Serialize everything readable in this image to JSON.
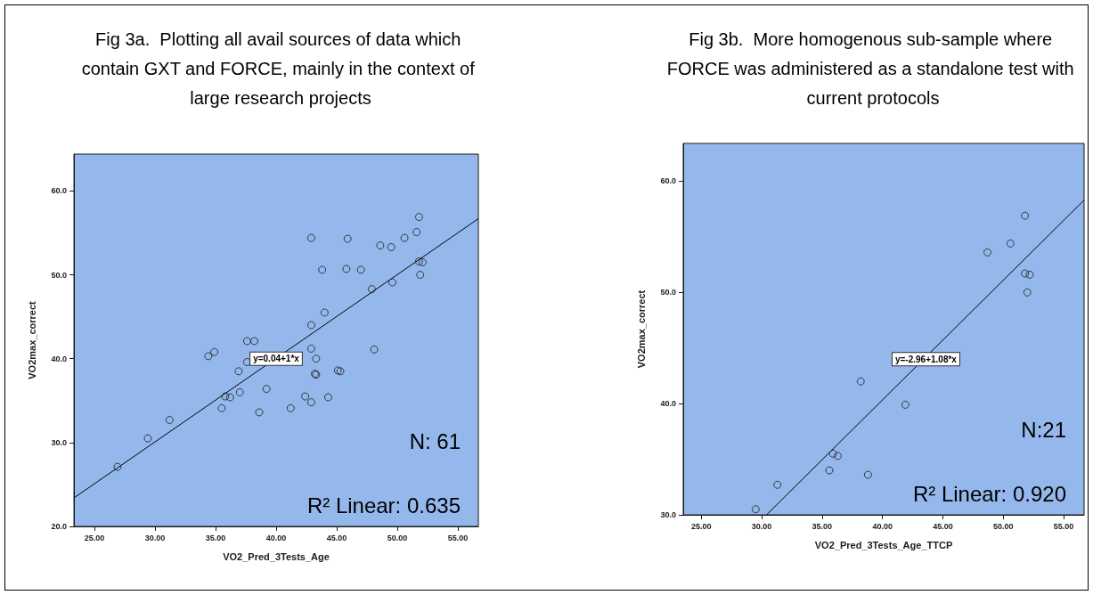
{
  "chart_data": [
    {
      "type": "scatter",
      "title": "Fig 3a.  Plotting all avail sources of data which contain GXT and FORCE, mainly in the context of large research projects",
      "xlabel": "VO2_Pred_3Tests_Age",
      "ylabel": "VO2max_correct",
      "marker": "circle",
      "series": [
        {
          "color": "#1a1a1a",
          "x": [
            26.9,
            29.4,
            31.2,
            34.4,
            34.9,
            35.5,
            35.8,
            36.2,
            36.9,
            37.0,
            37.6,
            38.2,
            37.6,
            38.6,
            39.2,
            39.5,
            41.2,
            42.4,
            42.9,
            42.9,
            43.3,
            43.2,
            43.3,
            42.9,
            42.9,
            43.8,
            44.0,
            44.3,
            45.1,
            45.3,
            45.9,
            45.8,
            47.0,
            47.9,
            48.1,
            48.6,
            49.5,
            49.6,
            50.6,
            51.6,
            51.8,
            51.8,
            52.1,
            51.9
          ],
          "values": [
            27.1,
            30.5,
            32.7,
            40.3,
            40.8,
            34.1,
            35.5,
            35.4,
            38.5,
            36.0,
            42.1,
            42.1,
            39.6,
            33.6,
            36.4,
            null,
            34.1,
            35.5,
            34.8,
            41.2,
            40.0,
            38.2,
            38.1,
            44.0,
            54.4,
            50.6,
            45.5,
            35.4,
            38.6,
            38.5,
            54.3,
            50.7,
            50.6,
            48.3,
            41.1,
            53.5,
            53.3,
            49.1,
            54.4,
            55.1,
            56.9,
            51.6,
            51.5,
            50.0
          ]
        },
        {
          "type": "line",
          "color": "#000000",
          "marker": "none",
          "x": [
            23.3,
            56.7
          ],
          "values": [
            23.4,
            56.7
          ]
        }
      ],
      "xlim": [
        23.3,
        56.7
      ],
      "xticks": [
        {
          "value": 25,
          "label": "25.00"
        },
        {
          "value": 30,
          "label": "30.00"
        },
        {
          "value": 35,
          "label": "35.00"
        },
        {
          "value": 40,
          "label": "40.00"
        },
        {
          "value": 45,
          "label": "45.00"
        },
        {
          "value": 50,
          "label": "50.00"
        },
        {
          "value": 55,
          "label": "55.00"
        }
      ],
      "ylim": [
        20,
        64.4
      ],
      "yticks": [
        {
          "value": 20,
          "label": "20.0"
        },
        {
          "value": 30,
          "label": "30.0"
        },
        {
          "value": 40,
          "label": "40.0"
        },
        {
          "value": 50,
          "label": "50.0"
        },
        {
          "value": 60,
          "label": "60.0"
        }
      ],
      "annotations": [
        {
          "text": "y=0.04+1*x",
          "x": 40,
          "y": 40
        },
        "N: 61",
        "R² Linear: 0.635"
      ]
    },
    {
      "type": "scatter",
      "title": "Fig 3b.  More homogenous sub-sample where FORCE was administered as a standalone test with current protocols",
      "xlabel": "VO2_Pred_3Tests_Age_TTCP",
      "ylabel": "VO2max_correct",
      "marker": "circle",
      "series": [
        {
          "color": "#1a1a1a",
          "x": [
            29.5,
            31.3,
            35.6,
            35.9,
            36.3,
            38.2,
            38.8,
            41.9,
            48.7,
            50.6,
            51.8,
            51.8,
            52.2,
            52.0
          ],
          "values": [
            30.5,
            32.7,
            34.0,
            35.5,
            35.3,
            42.0,
            33.6,
            39.9,
            53.6,
            54.4,
            56.9,
            51.7,
            51.6,
            50.0
          ]
        },
        {
          "type": "line",
          "color": "#000000",
          "marker": "none",
          "x": [
            30.4,
            56.7
          ],
          "values": [
            30.0,
            58.3
          ]
        }
      ],
      "xlim": [
        23.5,
        56.7
      ],
      "xticks": [
        {
          "value": 25,
          "label": "25.00"
        },
        {
          "value": 30,
          "label": "30.00"
        },
        {
          "value": 35,
          "label": "35.00"
        },
        {
          "value": 40,
          "label": "40.00"
        },
        {
          "value": 45,
          "label": "45.00"
        },
        {
          "value": 50,
          "label": "50.00"
        },
        {
          "value": 55,
          "label": "55.00"
        }
      ],
      "ylim": [
        30,
        63.4
      ],
      "yticks": [
        {
          "value": 30,
          "label": "30.0"
        },
        {
          "value": 40,
          "label": "40.0"
        },
        {
          "value": 50,
          "label": "50.0"
        },
        {
          "value": 60,
          "label": "60.0"
        }
      ],
      "annotations": [
        {
          "text": "y=-2.96+1.08*x",
          "x": 43.6,
          "y": 44.0
        },
        "N:21",
        "R² Linear: 0.920"
      ]
    }
  ]
}
